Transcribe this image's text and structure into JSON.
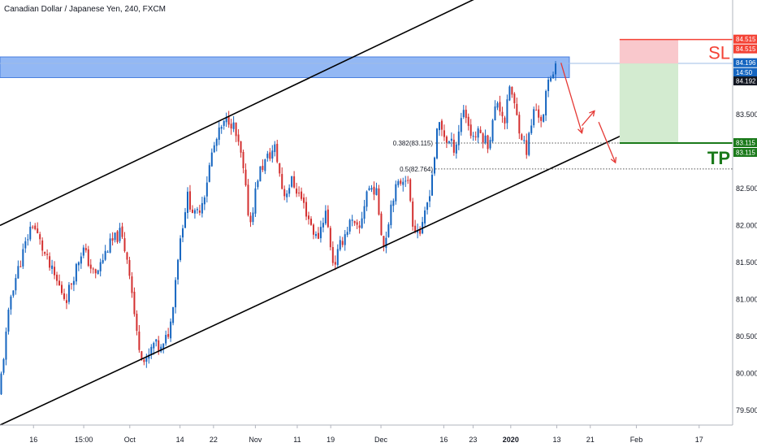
{
  "colors": {
    "up": "#1565c0",
    "down": "#d32f2f",
    "zone": "#6fa0f0",
    "sl": "#f44336",
    "tp": "#1b7a1b",
    "stop_fill": "#f9c8cc",
    "target_fill": "#d3ebd0",
    "arrow": "#e53935",
    "channel": "#000000",
    "price_tag": "#131722",
    "ref_line": "#9fbce6"
  },
  "chart_data": {
    "type": "candlestick",
    "title": "Canadian Dollar / Japanese Yen, 240, FXCM",
    "xlabel": "",
    "ylabel": "",
    "ylim": [
      79.3,
      85.05
    ],
    "y_ticks": [
      79.5,
      80.0,
      80.5,
      81.0,
      81.5,
      82.0,
      82.5,
      83.0,
      83.5
    ],
    "x_ticks": [
      {
        "label": "16",
        "x": 8
      },
      {
        "label": "15:00",
        "x": 20
      },
      {
        "label": "Oct",
        "x": 31
      },
      {
        "label": "14",
        "x": 43
      },
      {
        "label": "22",
        "x": 51
      },
      {
        "label": "Nov",
        "x": 61
      },
      {
        "label": "11",
        "x": 71
      },
      {
        "label": "19",
        "x": 79
      },
      {
        "label": "Dec",
        "x": 91
      },
      {
        "label": "16",
        "x": 106
      },
      {
        "label": "23",
        "x": 113
      },
      {
        "label": "2020",
        "x": 122
      },
      {
        "label": "13",
        "x": 133
      },
      {
        "label": "21",
        "x": 141
      },
      {
        "label": "Feb",
        "x": 152
      },
      {
        "label": "17",
        "x": 167
      }
    ],
    "x_range": [
      0,
      175
    ],
    "price_path": [
      [
        0,
        79.7
      ],
      [
        3,
        81.1
      ],
      [
        8,
        82.05
      ],
      [
        12,
        81.45
      ],
      [
        16,
        81.0
      ],
      [
        20,
        81.7
      ],
      [
        23,
        81.3
      ],
      [
        26,
        81.7
      ],
      [
        29,
        81.9
      ],
      [
        31,
        81.5
      ],
      [
        33,
        80.5
      ],
      [
        35,
        80.1
      ],
      [
        37,
        80.4
      ],
      [
        39,
        80.3
      ],
      [
        41,
        80.65
      ],
      [
        43,
        81.7
      ],
      [
        45,
        82.4
      ],
      [
        47,
        82.1
      ],
      [
        49,
        82.4
      ],
      [
        51,
        83.0
      ],
      [
        53,
        83.3
      ],
      [
        55,
        83.45
      ],
      [
        56,
        83.35
      ],
      [
        58,
        82.9
      ],
      [
        60,
        82.0
      ],
      [
        62,
        82.7
      ],
      [
        64,
        82.9
      ],
      [
        66,
        83.05
      ],
      [
        68,
        82.4
      ],
      [
        70,
        82.6
      ],
      [
        72,
        82.4
      ],
      [
        74,
        82.1
      ],
      [
        76,
        81.8
      ],
      [
        78,
        82.2
      ],
      [
        80,
        81.45
      ],
      [
        82,
        81.8
      ],
      [
        84,
        82.05
      ],
      [
        86,
        81.9
      ],
      [
        88,
        82.5
      ],
      [
        90,
        82.5
      ],
      [
        92,
        81.7
      ],
      [
        94,
        82.4
      ],
      [
        96,
        82.6
      ],
      [
        97,
        82.7
      ],
      [
        98,
        82.5
      ],
      [
        99,
        82.0
      ],
      [
        101,
        81.9
      ],
      [
        103,
        82.5
      ],
      [
        104,
        82.9
      ],
      [
        105,
        83.4
      ],
      [
        107,
        83.15
      ],
      [
        109,
        83.05
      ],
      [
        111,
        83.6
      ],
      [
        113,
        83.2
      ],
      [
        115,
        83.25
      ],
      [
        117,
        83.1
      ],
      [
        119,
        83.7
      ],
      [
        121,
        83.4
      ],
      [
        122,
        83.9
      ],
      [
        124,
        83.4
      ],
      [
        126,
        83.0
      ],
      [
        128,
        83.6
      ],
      [
        130,
        83.4
      ],
      [
        131,
        83.9
      ],
      [
        133,
        84.2
      ]
    ],
    "annotations": {
      "resistance_zone": {
        "y_from": 84.0,
        "y_to": 84.28,
        "x_from": 0,
        "x_to": 136
      },
      "channel_upper": [
        [
          0,
          82.0
        ],
        [
          134,
          85.62
        ]
      ],
      "channel_lower": [
        [
          0,
          79.3
        ],
        [
          155,
          83.39
        ]
      ],
      "fib_levels": [
        {
          "label": "0.382(83.115)",
          "value": 83.115
        },
        {
          "label": "0.5(82.764)",
          "value": 82.764
        }
      ],
      "fib_x_start": 104,
      "arrows": [
        [
          [
            134,
            84.2
          ],
          [
            139,
            83.25
          ]
        ],
        [
          [
            139,
            83.35
          ],
          [
            142,
            83.55
          ]
        ],
        [
          [
            143,
            83.4
          ],
          [
            147,
            82.85
          ]
        ]
      ],
      "position_box": {
        "x_from": 148,
        "x_to": 162,
        "entry": 84.192,
        "stop": 84.515,
        "target": 83.115
      },
      "sl_label": "SL",
      "tp_label": "TP"
    },
    "price_tags": [
      {
        "label": "84.515",
        "value": 84.515,
        "color": "sl"
      },
      {
        "label": "84.515",
        "value": 84.515,
        "color": "sl"
      },
      {
        "label": "84.196",
        "value": 84.196,
        "color": "up"
      },
      {
        "label": "14:50",
        "value": 84.196,
        "color": "up"
      },
      {
        "label": "84.192",
        "value": 84.192,
        "color": "price_tag"
      },
      {
        "label": "83.115",
        "value": 83.115,
        "color": "tp"
      },
      {
        "label": "83.115",
        "value": 83.115,
        "color": "tp"
      }
    ]
  }
}
